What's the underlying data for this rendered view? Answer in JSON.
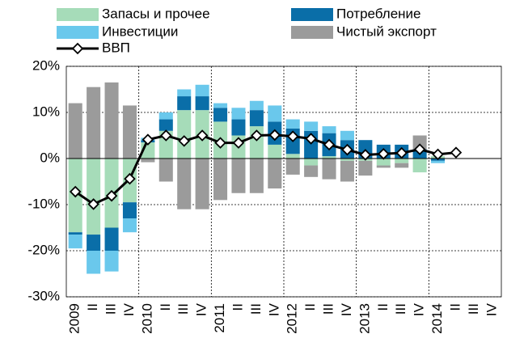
{
  "chart_data": {
    "type": "bar",
    "categories": [
      "2009",
      "II",
      "III",
      "IV",
      "2010",
      "II",
      "III",
      "IV",
      "2011",
      "II",
      "III",
      "IV",
      "2012",
      "II",
      "III",
      "IV",
      "2013",
      "II",
      "III",
      "IV",
      "2014",
      "II",
      "III",
      "IV"
    ],
    "series": [
      {
        "name": "Запасы и прочее",
        "color": "#a6dcb9",
        "values": [
          -16,
          -16.5,
          -15,
          -9.5,
          3.5,
          6,
          10.5,
          10.5,
          8,
          5,
          7,
          3,
          1,
          -1.5,
          0.5,
          -0.5,
          -0.5,
          -1.5,
          -1,
          -3,
          0.5,
          null,
          null,
          null
        ]
      },
      {
        "name": "Потребление",
        "color": "#0a6ea8",
        "values": [
          -0.5,
          -3.5,
          -5,
          -3.5,
          0.5,
          2.5,
          3,
          3,
          3,
          3.5,
          3.5,
          5,
          5.5,
          6,
          5,
          4,
          4,
          3,
          3,
          2,
          -0.5,
          null,
          null,
          null
        ]
      },
      {
        "name": "Инвестиции",
        "color": "#6ac8ec",
        "values": [
          -3,
          -5,
          -4.5,
          -3,
          0.5,
          1.5,
          1.5,
          2.5,
          1,
          2.5,
          2,
          3.5,
          2,
          2,
          1.5,
          2,
          0,
          0,
          0,
          0,
          -0.5,
          null,
          null,
          null
        ]
      },
      {
        "name": "Чистый экспорт",
        "color": "#9b9b9b",
        "values": [
          12,
          15.5,
          16.5,
          11.5,
          -0.8,
          -5,
          -11,
          -11,
          -9,
          -7.5,
          -7.5,
          -6.5,
          -3.5,
          -2.5,
          -4.5,
          -4.5,
          -3.2,
          -0.5,
          -1,
          3,
          0,
          null,
          null,
          null
        ]
      },
      {
        "name": "ВВП",
        "type": "line",
        "color": "#000000",
        "values": [
          -7.2,
          -9.9,
          -8.1,
          -4.4,
          4.1,
          5,
          3.8,
          5,
          3.4,
          3.4,
          5,
          5.1,
          4.8,
          4.3,
          3,
          1.9,
          0.8,
          1,
          1.2,
          2,
          0.9,
          1.3,
          null,
          null
        ]
      }
    ],
    "ylim": [
      -30,
      20
    ],
    "yticks": [
      {
        "value": -30,
        "label": "-30%"
      },
      {
        "value": -20,
        "label": "-20%"
      },
      {
        "value": -10,
        "label": "-10%"
      },
      {
        "value": 0,
        "label": "0%"
      },
      {
        "value": 10,
        "label": "10%"
      },
      {
        "value": 20,
        "label": "20%"
      }
    ],
    "grid": true
  }
}
